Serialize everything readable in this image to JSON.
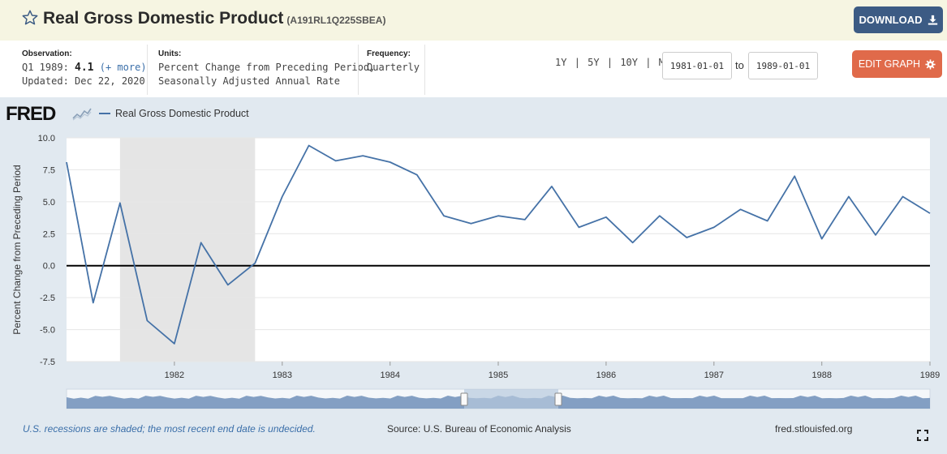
{
  "header": {
    "title": "Real Gross Domestic Product",
    "series_id": "(A191RL1Q225SBEA)",
    "download_label": "DOWNLOAD"
  },
  "meta": {
    "observation_label": "Observation:",
    "observation_period": "Q1 1989:",
    "observation_value": "4.1",
    "observation_more": "(+ more)",
    "updated": "Updated: Dec 22, 2020",
    "units_label": "Units:",
    "units_line1": "Percent Change from Preceding Period,",
    "units_line2": "Seasonally Adjusted Annual Rate",
    "frequency_label": "Frequency:",
    "frequency_value": "Quarterly"
  },
  "controls": {
    "range_1y": "1Y",
    "range_5y": "5Y",
    "range_10y": "10Y",
    "range_max": "Max",
    "separator": "|",
    "start_date": "1981-01-01",
    "to_label": "to",
    "end_date": "1989-01-01",
    "edit_label": "EDIT GRAPH"
  },
  "logo": {
    "text": "FRED"
  },
  "footer": {
    "note": "U.S. recessions are shaded; the most recent end date is undecided.",
    "source": "Source: U.S. Bureau of Economic Analysis",
    "site": "fred.stlouisfed.org"
  },
  "colors": {
    "series": "#4572a7",
    "recession": "#e5e5e5",
    "download": "#3c5b84",
    "edit": "#e06a4a",
    "panel": "#e1e9f0",
    "header": "#f6f5e2"
  },
  "chart_data": {
    "type": "line",
    "ylabel": "Percent Change from Preceding Period",
    "ylim": [
      -7.5,
      10.0
    ],
    "yticks": [
      "10.0",
      "7.5",
      "5.0",
      "2.5",
      "0.0",
      "-2.5",
      "-5.0",
      "-7.5"
    ],
    "xlim": [
      "1981-01-01",
      "1989-01-01"
    ],
    "xtick_labels": [
      "1982",
      "1983",
      "1984",
      "1985",
      "1986",
      "1987",
      "1988",
      "1989"
    ],
    "grid": true,
    "zero_line": true,
    "recession": {
      "start": "1981-07-01",
      "end": "1982-10-01"
    },
    "series": [
      {
        "name": "Real Gross Domestic Product",
        "x": [
          "1981-01-01",
          "1981-04-01",
          "1981-07-01",
          "1981-10-01",
          "1982-01-01",
          "1982-04-01",
          "1982-07-01",
          "1982-10-01",
          "1983-01-01",
          "1983-04-01",
          "1983-07-01",
          "1983-10-01",
          "1984-01-01",
          "1984-04-01",
          "1984-07-01",
          "1984-10-01",
          "1985-01-01",
          "1985-04-01",
          "1985-07-01",
          "1985-10-01",
          "1986-01-01",
          "1986-04-01",
          "1986-07-01",
          "1986-10-01",
          "1987-01-01",
          "1987-04-01",
          "1987-07-01",
          "1987-10-01",
          "1988-01-01",
          "1988-04-01",
          "1988-07-01",
          "1988-10-01",
          "1989-01-01"
        ],
        "values": [
          8.1,
          -2.9,
          4.9,
          -4.3,
          -6.1,
          1.8,
          -1.5,
          0.2,
          5.4,
          9.4,
          8.2,
          8.6,
          8.1,
          7.1,
          3.9,
          3.3,
          3.9,
          3.6,
          6.2,
          3.0,
          3.8,
          1.8,
          3.9,
          2.2,
          3.0,
          4.4,
          3.5,
          7.0,
          2.1,
          5.4,
          2.4,
          5.4,
          4.1
        ]
      }
    ]
  }
}
